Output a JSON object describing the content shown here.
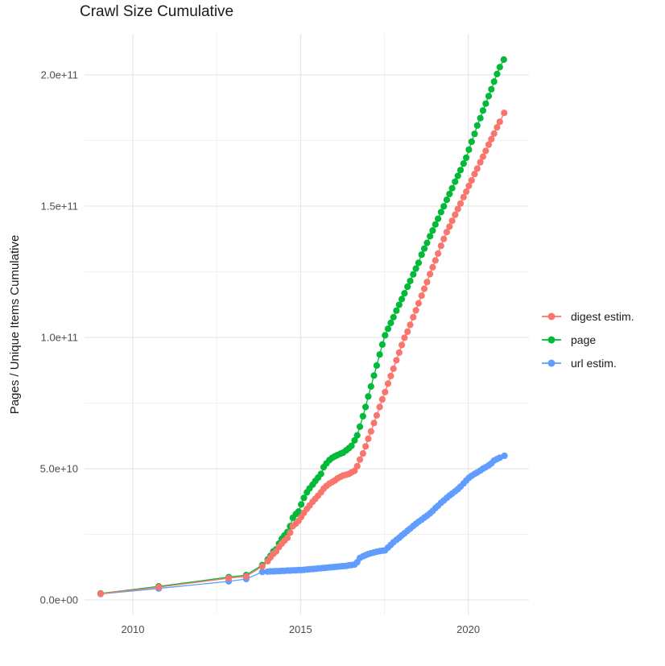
{
  "chart_data": {
    "type": "line",
    "title": "Crawl Size Cumulative",
    "xlabel": "",
    "ylabel": "Pages / Unique Items Cumulative",
    "legend_position": "right",
    "grid": true,
    "values_unit": "billions (1e9); axis shows scientific notation",
    "x_domain": [
      2008.56,
      2021.81
    ],
    "y_domain": [
      -5.5,
      215.6
    ],
    "x_ticks": [
      {
        "v": 2010,
        "label": "2010"
      },
      {
        "v": 2015,
        "label": "2015"
      },
      {
        "v": 2020,
        "label": "2020"
      }
    ],
    "y_ticks": [
      {
        "v": 0,
        "label": "0.0e+00"
      },
      {
        "v": 50,
        "label": "5.0e+10"
      },
      {
        "v": 100,
        "label": "1.0e+11"
      },
      {
        "v": 150,
        "label": "1.5e+11"
      },
      {
        "v": 200,
        "label": "2.0e+11"
      }
    ],
    "x_minor": [
      2012.5,
      2017.5
    ],
    "y_minor": [
      25,
      75,
      125,
      175
    ],
    "draw_order": [
      2,
      1,
      0
    ],
    "series": [
      {
        "name": "digest estim.",
        "color": "#F8766D",
        "points": [
          [
            2009.04,
            2.4
          ],
          [
            2010.77,
            4.9
          ],
          [
            2012.86,
            8.3
          ],
          [
            2013.38,
            9.0
          ],
          [
            2013.86,
            12.8
          ],
          [
            2014.02,
            14.8
          ],
          [
            2014.1,
            16.2
          ],
          [
            2014.19,
            17.6
          ],
          [
            2014.27,
            18.5
          ],
          [
            2014.36,
            20.2
          ],
          [
            2014.44,
            21.5
          ],
          [
            2014.52,
            22.6
          ],
          [
            2014.61,
            23.7
          ],
          [
            2014.69,
            25.7
          ],
          [
            2014.77,
            28.1
          ],
          [
            2014.86,
            29.1
          ],
          [
            2014.94,
            30.1
          ],
          [
            2015.02,
            31.6
          ],
          [
            2015.1,
            33.2
          ],
          [
            2015.19,
            34.7
          ],
          [
            2015.27,
            36.0
          ],
          [
            2015.36,
            37.4
          ],
          [
            2015.44,
            38.5
          ],
          [
            2015.52,
            39.7
          ],
          [
            2015.61,
            41.0
          ],
          [
            2015.69,
            42.4
          ],
          [
            2015.77,
            43.4
          ],
          [
            2015.86,
            44.3
          ],
          [
            2015.94,
            44.9
          ],
          [
            2016.02,
            45.5
          ],
          [
            2016.1,
            46.3
          ],
          [
            2016.19,
            46.9
          ],
          [
            2016.27,
            47.4
          ],
          [
            2016.36,
            47.7
          ],
          [
            2016.44,
            48.0
          ],
          [
            2016.52,
            48.6
          ],
          [
            2016.61,
            49.2
          ],
          [
            2016.69,
            51.0
          ],
          [
            2016.77,
            53.5
          ],
          [
            2016.86,
            55.8
          ],
          [
            2016.94,
            58.5
          ],
          [
            2017.02,
            61.4
          ],
          [
            2017.1,
            64.2
          ],
          [
            2017.19,
            67.4
          ],
          [
            2017.27,
            70.3
          ],
          [
            2017.36,
            73.5
          ],
          [
            2017.44,
            76.4
          ],
          [
            2017.52,
            79.2
          ],
          [
            2017.61,
            82.4
          ],
          [
            2017.69,
            85.3
          ],
          [
            2017.77,
            88.1
          ],
          [
            2017.86,
            91.3
          ],
          [
            2017.94,
            94.2
          ],
          [
            2018.02,
            97.1
          ],
          [
            2018.1,
            99.9
          ],
          [
            2018.19,
            102.2
          ],
          [
            2018.27,
            104.8
          ],
          [
            2018.36,
            107.7
          ],
          [
            2018.44,
            110.3
          ],
          [
            2018.52,
            113.0
          ],
          [
            2018.61,
            115.9
          ],
          [
            2018.69,
            118.5
          ],
          [
            2018.77,
            121.1
          ],
          [
            2018.86,
            124.1
          ],
          [
            2018.94,
            126.7
          ],
          [
            2019.02,
            129.3
          ],
          [
            2019.1,
            131.9
          ],
          [
            2019.19,
            134.9
          ],
          [
            2019.27,
            137.5
          ],
          [
            2019.36,
            140.1
          ],
          [
            2019.44,
            142.2
          ],
          [
            2019.52,
            144.4
          ],
          [
            2019.61,
            146.7
          ],
          [
            2019.69,
            148.9
          ],
          [
            2019.77,
            151.0
          ],
          [
            2019.86,
            153.4
          ],
          [
            2019.94,
            155.5
          ],
          [
            2020.02,
            157.7
          ],
          [
            2020.1,
            159.8
          ],
          [
            2020.19,
            162.2
          ],
          [
            2020.27,
            164.3
          ],
          [
            2020.36,
            166.7
          ],
          [
            2020.44,
            168.8
          ],
          [
            2020.52,
            171.0
          ],
          [
            2020.61,
            173.4
          ],
          [
            2020.69,
            175.5
          ],
          [
            2020.77,
            177.6
          ],
          [
            2020.86,
            180.0
          ],
          [
            2020.94,
            182.1
          ],
          [
            2021.07,
            185.5
          ]
        ]
      },
      {
        "name": "page",
        "color": "#00BA38",
        "points": [
          [
            2009.04,
            2.5
          ],
          [
            2010.77,
            5.2
          ],
          [
            2012.86,
            8.7
          ],
          [
            2013.38,
            9.5
          ],
          [
            2013.86,
            13.3
          ],
          [
            2014.02,
            15.4
          ],
          [
            2014.1,
            16.8
          ],
          [
            2014.19,
            18.5
          ],
          [
            2014.27,
            19.3
          ],
          [
            2014.36,
            21.5
          ],
          [
            2014.44,
            23.3
          ],
          [
            2014.52,
            24.6
          ],
          [
            2014.61,
            25.9
          ],
          [
            2014.69,
            28.1
          ],
          [
            2014.77,
            31.3
          ],
          [
            2014.86,
            32.7
          ],
          [
            2014.94,
            33.7
          ],
          [
            2015.02,
            36.4
          ],
          [
            2015.1,
            38.9
          ],
          [
            2015.19,
            41.0
          ],
          [
            2015.27,
            42.5
          ],
          [
            2015.36,
            43.9
          ],
          [
            2015.44,
            45.3
          ],
          [
            2015.52,
            46.6
          ],
          [
            2015.61,
            48.0
          ],
          [
            2015.69,
            50.6
          ],
          [
            2015.77,
            52.0
          ],
          [
            2015.86,
            53.3
          ],
          [
            2015.94,
            54.1
          ],
          [
            2016.02,
            54.7
          ],
          [
            2016.1,
            55.2
          ],
          [
            2016.19,
            55.7
          ],
          [
            2016.27,
            56.1
          ],
          [
            2016.36,
            57.0
          ],
          [
            2016.44,
            57.8
          ],
          [
            2016.52,
            58.7
          ],
          [
            2016.61,
            60.8
          ],
          [
            2016.69,
            62.7
          ],
          [
            2016.77,
            66.0
          ],
          [
            2016.86,
            70.0
          ],
          [
            2016.94,
            73.5
          ],
          [
            2017.02,
            77.5
          ],
          [
            2017.1,
            81.3
          ],
          [
            2017.19,
            85.5
          ],
          [
            2017.27,
            89.3
          ],
          [
            2017.36,
            93.5
          ],
          [
            2017.44,
            97.3
          ],
          [
            2017.52,
            100.8
          ],
          [
            2017.61,
            103.3
          ],
          [
            2017.69,
            105.5
          ],
          [
            2017.77,
            107.7
          ],
          [
            2017.86,
            110.2
          ],
          [
            2017.94,
            112.4
          ],
          [
            2018.02,
            114.6
          ],
          [
            2018.1,
            116.8
          ],
          [
            2018.19,
            119.3
          ],
          [
            2018.27,
            121.5
          ],
          [
            2018.36,
            124.0
          ],
          [
            2018.44,
            126.2
          ],
          [
            2018.52,
            128.4
          ],
          [
            2018.61,
            131.5
          ],
          [
            2018.69,
            133.8
          ],
          [
            2018.77,
            136.0
          ],
          [
            2018.86,
            138.5
          ],
          [
            2018.94,
            140.7
          ],
          [
            2019.02,
            143.0
          ],
          [
            2019.1,
            145.2
          ],
          [
            2019.19,
            147.7
          ],
          [
            2019.27,
            149.9
          ],
          [
            2019.36,
            152.4
          ],
          [
            2019.44,
            154.6
          ],
          [
            2019.52,
            156.8
          ],
          [
            2019.61,
            159.3
          ],
          [
            2019.69,
            161.5
          ],
          [
            2019.77,
            163.7
          ],
          [
            2019.86,
            166.2
          ],
          [
            2019.94,
            168.4
          ],
          [
            2020.02,
            171.5
          ],
          [
            2020.1,
            174.5
          ],
          [
            2020.19,
            177.5
          ],
          [
            2020.27,
            180.7
          ],
          [
            2020.36,
            183.5
          ],
          [
            2020.44,
            186.4
          ],
          [
            2020.52,
            189.0
          ],
          [
            2020.61,
            191.9
          ],
          [
            2020.69,
            194.5
          ],
          [
            2020.77,
            197.4
          ],
          [
            2020.86,
            200.3
          ],
          [
            2020.94,
            202.9
          ],
          [
            2021.06,
            205.8
          ]
        ]
      },
      {
        "name": "url estim.",
        "color": "#619CFF",
        "points": [
          [
            2009.04,
            2.3
          ],
          [
            2010.77,
            4.4
          ],
          [
            2012.86,
            7.1
          ],
          [
            2013.38,
            8.0
          ],
          [
            2013.86,
            10.7
          ],
          [
            2014.02,
            10.8
          ],
          [
            2014.1,
            10.9
          ],
          [
            2014.19,
            10.9
          ],
          [
            2014.27,
            11.0
          ],
          [
            2014.36,
            11.0
          ],
          [
            2014.44,
            11.1
          ],
          [
            2014.52,
            11.1
          ],
          [
            2014.61,
            11.2
          ],
          [
            2014.69,
            11.2
          ],
          [
            2014.77,
            11.3
          ],
          [
            2014.86,
            11.3
          ],
          [
            2014.94,
            11.4
          ],
          [
            2015.02,
            11.4
          ],
          [
            2015.1,
            11.5
          ],
          [
            2015.19,
            11.6
          ],
          [
            2015.27,
            11.7
          ],
          [
            2015.36,
            11.8
          ],
          [
            2015.44,
            11.9
          ],
          [
            2015.52,
            12.0
          ],
          [
            2015.61,
            12.1
          ],
          [
            2015.69,
            12.2
          ],
          [
            2015.77,
            12.3
          ],
          [
            2015.86,
            12.4
          ],
          [
            2015.94,
            12.5
          ],
          [
            2016.02,
            12.6
          ],
          [
            2016.1,
            12.7
          ],
          [
            2016.19,
            12.8
          ],
          [
            2016.27,
            12.9
          ],
          [
            2016.36,
            13.0
          ],
          [
            2016.44,
            13.2
          ],
          [
            2016.52,
            13.3
          ],
          [
            2016.61,
            13.5
          ],
          [
            2016.69,
            14.4
          ],
          [
            2016.77,
            16.0
          ],
          [
            2016.86,
            16.6
          ],
          [
            2016.94,
            17.1
          ],
          [
            2017.02,
            17.5
          ],
          [
            2017.1,
            17.8
          ],
          [
            2017.19,
            18.1
          ],
          [
            2017.27,
            18.4
          ],
          [
            2017.36,
            18.6
          ],
          [
            2017.44,
            18.8
          ],
          [
            2017.52,
            18.9
          ],
          [
            2017.61,
            20.0
          ],
          [
            2017.69,
            21.0
          ],
          [
            2017.77,
            22.0
          ],
          [
            2017.86,
            22.9
          ],
          [
            2017.94,
            23.7
          ],
          [
            2018.02,
            24.6
          ],
          [
            2018.1,
            25.4
          ],
          [
            2018.19,
            26.4
          ],
          [
            2018.27,
            27.2
          ],
          [
            2018.36,
            28.2
          ],
          [
            2018.44,
            29.0
          ],
          [
            2018.52,
            29.8
          ],
          [
            2018.61,
            30.6
          ],
          [
            2018.69,
            31.4
          ],
          [
            2018.77,
            32.1
          ],
          [
            2018.86,
            33.0
          ],
          [
            2018.94,
            33.9
          ],
          [
            2019.02,
            35.0
          ],
          [
            2019.1,
            35.9
          ],
          [
            2019.19,
            37.0
          ],
          [
            2019.27,
            37.9
          ],
          [
            2019.36,
            38.9
          ],
          [
            2019.44,
            39.8
          ],
          [
            2019.52,
            40.5
          ],
          [
            2019.61,
            41.4
          ],
          [
            2019.69,
            42.2
          ],
          [
            2019.77,
            43.2
          ],
          [
            2019.86,
            44.4
          ],
          [
            2019.94,
            45.5
          ],
          [
            2020.02,
            46.5
          ],
          [
            2020.1,
            47.3
          ],
          [
            2020.19,
            48.0
          ],
          [
            2020.27,
            48.6
          ],
          [
            2020.36,
            49.3
          ],
          [
            2020.44,
            50.0
          ],
          [
            2020.52,
            50.6
          ],
          [
            2020.61,
            51.3
          ],
          [
            2020.69,
            52.0
          ],
          [
            2020.77,
            53.1
          ],
          [
            2020.86,
            53.7
          ],
          [
            2020.94,
            54.2
          ],
          [
            2021.08,
            54.9
          ]
        ]
      }
    ],
    "style": {
      "grid_major_color": "#E6E6E6",
      "grid_minor_color": "#F0F0F0",
      "tick_label_color": "#4D4D4D",
      "title_color": "#1a1a1a",
      "point_radius": 4.1
    }
  }
}
